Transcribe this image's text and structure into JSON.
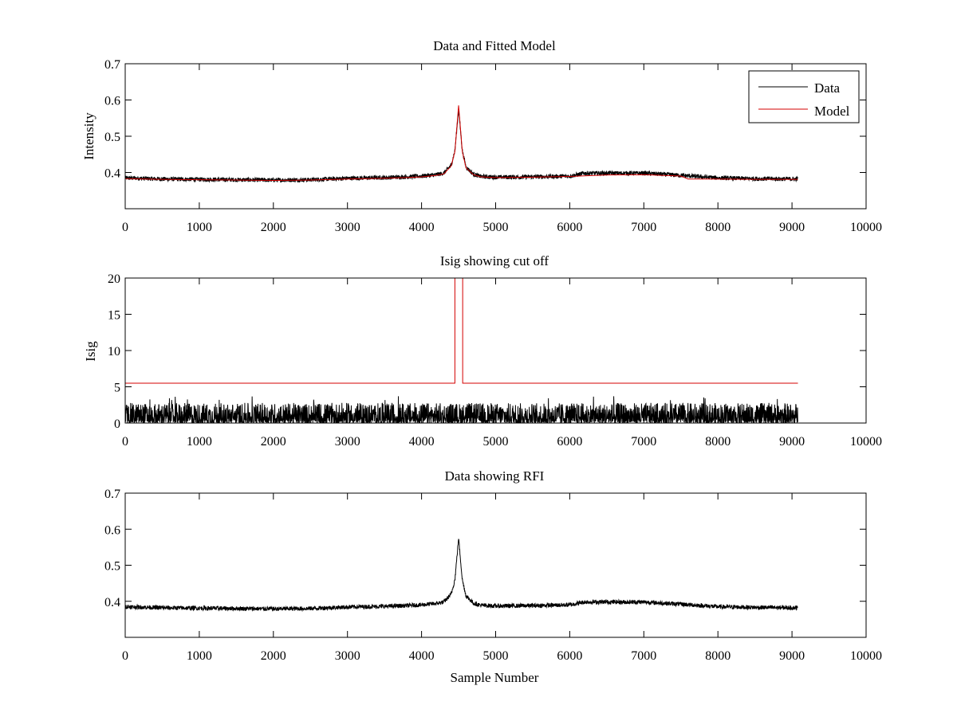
{
  "chart_data": [
    {
      "type": "line",
      "title": "Data and Fitted Model",
      "xlabel": "",
      "ylabel": "Intensity",
      "xlim": [
        0,
        10000
      ],
      "ylim": [
        0.3,
        0.7
      ],
      "xticks": [
        "0",
        "1000",
        "2000",
        "3000",
        "4000",
        "5000",
        "6000",
        "7000",
        "8000",
        "9000",
        "10000"
      ],
      "yticks": [
        "0.4",
        "0.5",
        "0.6",
        "0.7"
      ],
      "legend_position": "top-right",
      "legend": [
        "Data",
        "Model"
      ],
      "series": [
        {
          "name": "Data",
          "color": "#000000",
          "x": [
            0,
            500,
            1000,
            1500,
            2000,
            2500,
            3000,
            3500,
            3800,
            4000,
            4200,
            4300,
            4400,
            4450,
            4500,
            4550,
            4600,
            4700,
            4800,
            5000,
            5500,
            6000,
            6200,
            6500,
            7000,
            7500,
            8000,
            8500,
            9080
          ],
          "y": [
            0.385,
            0.382,
            0.381,
            0.38,
            0.379,
            0.38,
            0.384,
            0.386,
            0.388,
            0.39,
            0.394,
            0.398,
            0.42,
            0.46,
            0.575,
            0.46,
            0.415,
            0.395,
            0.389,
            0.387,
            0.388,
            0.39,
            0.398,
            0.398,
            0.398,
            0.392,
            0.385,
            0.383,
            0.382
          ],
          "noise_amplitude": 0.006
        },
        {
          "name": "Model",
          "color": "#d40000",
          "x": [
            0,
            500,
            1000,
            1500,
            2000,
            2500,
            3000,
            3500,
            3800,
            4000,
            4200,
            4300,
            4400,
            4450,
            4500,
            4550,
            4600,
            4700,
            4800,
            5000,
            5500,
            6000,
            6500,
            7000,
            7500,
            7600,
            8000,
            8500,
            9080
          ],
          "y": [
            0.383,
            0.381,
            0.38,
            0.379,
            0.378,
            0.379,
            0.382,
            0.384,
            0.386,
            0.388,
            0.392,
            0.396,
            0.418,
            0.458,
            0.585,
            0.458,
            0.413,
            0.394,
            0.388,
            0.386,
            0.387,
            0.389,
            0.393,
            0.394,
            0.39,
            0.382,
            0.382,
            0.381,
            0.381
          ]
        }
      ]
    },
    {
      "type": "line",
      "title": "Isig showing cut off",
      "xlabel": "",
      "ylabel": "Isig",
      "xlim": [
        0,
        10000
      ],
      "ylim": [
        0,
        20
      ],
      "xticks": [
        "0",
        "1000",
        "2000",
        "3000",
        "4000",
        "5000",
        "6000",
        "7000",
        "8000",
        "9000",
        "10000"
      ],
      "yticks": [
        "0",
        "5",
        "10",
        "15",
        "20"
      ],
      "series": [
        {
          "name": "",
          "color": "#000000",
          "x": [
            0,
            9080
          ],
          "y": [
            0.9,
            0.9
          ],
          "noise_range": [
            0,
            3.7
          ]
        },
        {
          "name": "",
          "color": "#d40000",
          "x": [
            0,
            4450,
            4450,
            4555,
            4555,
            9080
          ],
          "y": [
            5.5,
            5.5,
            20,
            20,
            5.5,
            5.5
          ]
        }
      ]
    },
    {
      "type": "line",
      "title": "Data showing RFI",
      "xlabel": "Sample Number",
      "ylabel": "",
      "xlim": [
        0,
        10000
      ],
      "ylim": [
        0.3,
        0.7
      ],
      "xticks": [
        "0",
        "1000",
        "2000",
        "3000",
        "4000",
        "5000",
        "6000",
        "7000",
        "8000",
        "9000",
        "10000"
      ],
      "yticks": [
        "0.4",
        "0.5",
        "0.6",
        "0.7"
      ],
      "series": [
        {
          "name": "",
          "color": "#000000",
          "x": [
            0,
            500,
            1000,
            1500,
            2000,
            2500,
            3000,
            3500,
            3800,
            4000,
            4200,
            4300,
            4400,
            4450,
            4500,
            4550,
            4600,
            4700,
            4800,
            5000,
            5500,
            6000,
            6200,
            6500,
            7000,
            7500,
            8000,
            8500,
            9080
          ],
          "y": [
            0.385,
            0.382,
            0.381,
            0.38,
            0.379,
            0.38,
            0.384,
            0.386,
            0.388,
            0.39,
            0.394,
            0.398,
            0.42,
            0.46,
            0.575,
            0.46,
            0.415,
            0.395,
            0.389,
            0.387,
            0.388,
            0.39,
            0.398,
            0.398,
            0.398,
            0.392,
            0.385,
            0.383,
            0.382
          ],
          "noise_amplitude": 0.006
        }
      ]
    }
  ]
}
